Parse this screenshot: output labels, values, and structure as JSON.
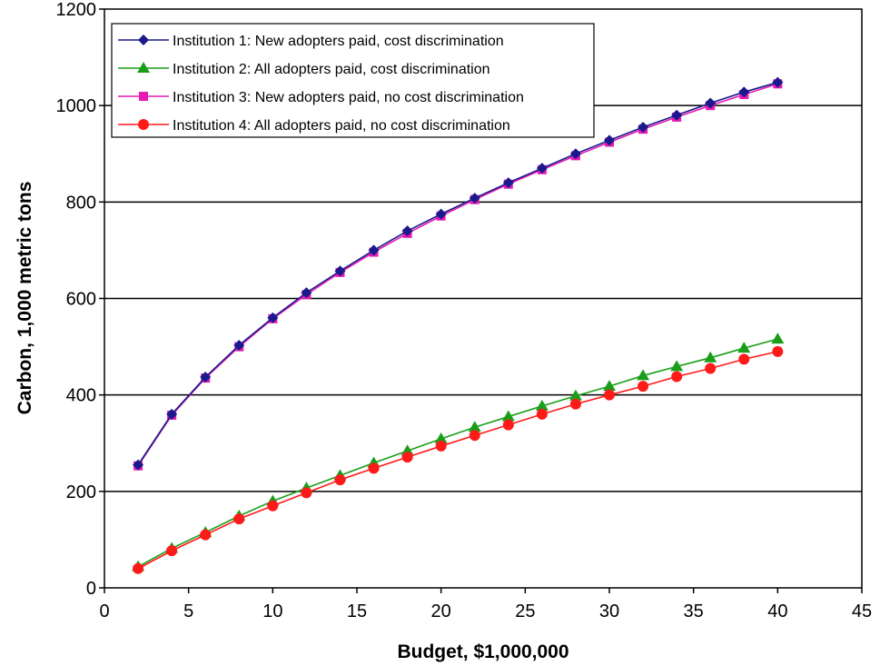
{
  "chart_data": {
    "type": "line",
    "title": "",
    "xlabel": "Budget, $1,000,000",
    "ylabel": "Carbon, 1,000 metric tons",
    "xlim": [
      0,
      45
    ],
    "ylim": [
      0,
      1200
    ],
    "xticks": [
      0,
      5,
      10,
      15,
      20,
      25,
      30,
      35,
      40,
      45
    ],
    "yticks": [
      0,
      200,
      400,
      600,
      800,
      1000,
      1200
    ],
    "grid": "horizontal major gridlines",
    "legend_position": "top-left",
    "x": [
      2,
      4,
      6,
      8,
      10,
      12,
      14,
      16,
      18,
      20,
      22,
      24,
      26,
      28,
      30,
      32,
      34,
      36,
      38,
      40
    ],
    "series": [
      {
        "name": "Institution 1: New adopters paid, cost discrimination",
        "color": "#1a1a8c",
        "marker": "diamond",
        "values": [
          255,
          360,
          437,
          503,
          560,
          612,
          657,
          700,
          740,
          775,
          808,
          840,
          870,
          900,
          928,
          955,
          980,
          1005,
          1028,
          1048
        ]
      },
      {
        "name": "Institution 2: All adopters paid, cost discrimination",
        "color": "#1a9e1a",
        "marker": "triangle",
        "values": [
          44,
          82,
          115,
          149,
          180,
          207,
          233,
          259,
          284,
          309,
          333,
          355,
          377,
          398,
          418,
          440,
          459,
          477,
          497,
          516
        ]
      },
      {
        "name": "Institution 3: New adopters paid, no cost discrimination",
        "color": "#e619b3",
        "marker": "square",
        "values": [
          253,
          358,
          435,
          500,
          558,
          608,
          654,
          696,
          735,
          771,
          805,
          837,
          867,
          896,
          924,
          951,
          976,
          1000,
          1023,
          1045
        ]
      },
      {
        "name": "Institution 4: All adopters paid, no cost discrimination",
        "color": "#ff1a1a",
        "marker": "circle",
        "values": [
          40,
          77,
          110,
          143,
          170,
          197,
          224,
          248,
          271,
          294,
          316,
          338,
          360,
          381,
          400,
          418,
          438,
          455,
          474,
          490
        ]
      }
    ]
  }
}
